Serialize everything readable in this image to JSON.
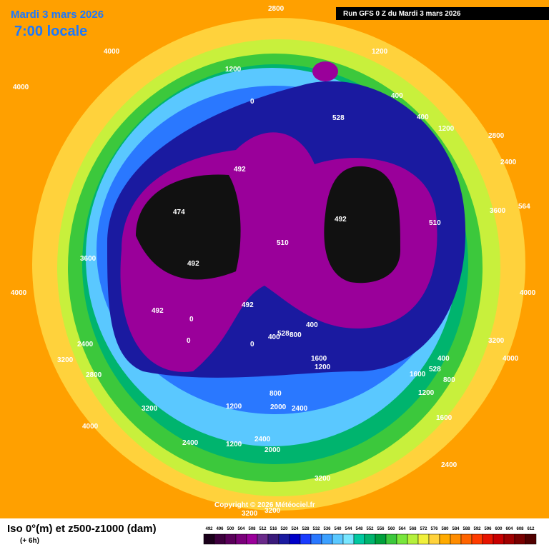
{
  "header": {
    "date": "Mardi 3 mars 2026",
    "time": "7:00 locale",
    "run": "Run GFS 0 Z du Mardi 3 mars 2026"
  },
  "map_labels": [
    "4000",
    "4000",
    "2800",
    "1200",
    "1200",
    "0",
    "528",
    "400",
    "400",
    "1200",
    "2800",
    "2400",
    "3600",
    "564",
    "492",
    "474",
    "492",
    "510",
    "510",
    "492",
    "492",
    "492",
    "0",
    "0",
    "528",
    "800",
    "400",
    "1600",
    "1200",
    "528",
    "400",
    "800",
    "1600",
    "1200",
    "1600",
    "2400",
    "3200",
    "4000",
    "3200",
    "2800",
    "3200",
    "4000",
    "2400",
    "1200",
    "2400",
    "2000",
    "3200",
    "3200",
    "3200",
    "2000",
    "2400",
    "1200",
    "800",
    "400",
    "3600",
    "4000",
    "2400",
    "0",
    "4000"
  ],
  "copyright": "Copyright © 2026 Météociel.fr",
  "footer": {
    "title": "Iso 0°(m) et z500-z1000 (dam)",
    "step": "(+ 6h)"
  },
  "scale": {
    "ticks": [
      492,
      496,
      500,
      504,
      508,
      512,
      516,
      520,
      524,
      528,
      532,
      536,
      540,
      544,
      548,
      552,
      556,
      560,
      564,
      568,
      572,
      576,
      580,
      584,
      588,
      592,
      596,
      600,
      604,
      608,
      612
    ],
    "colors": [
      "#1a001a",
      "#3d003d",
      "#5a005a",
      "#7a007a",
      "#9a009a",
      "#6a2a8a",
      "#3a1a7a",
      "#1a1aa0",
      "#0000c8",
      "#1a3cff",
      "#2a78ff",
      "#3ca0ff",
      "#5ac8ff",
      "#78e6ff",
      "#00c8a0",
      "#00b46e",
      "#00a03c",
      "#3cc83c",
      "#78e63c",
      "#b4f03c",
      "#f0f03c",
      "#ffd23c",
      "#ffaa00",
      "#ff8c00",
      "#ff6400",
      "#ff3c00",
      "#e61400",
      "#c80000",
      "#a00000",
      "#780000",
      "#500000"
    ]
  }
}
